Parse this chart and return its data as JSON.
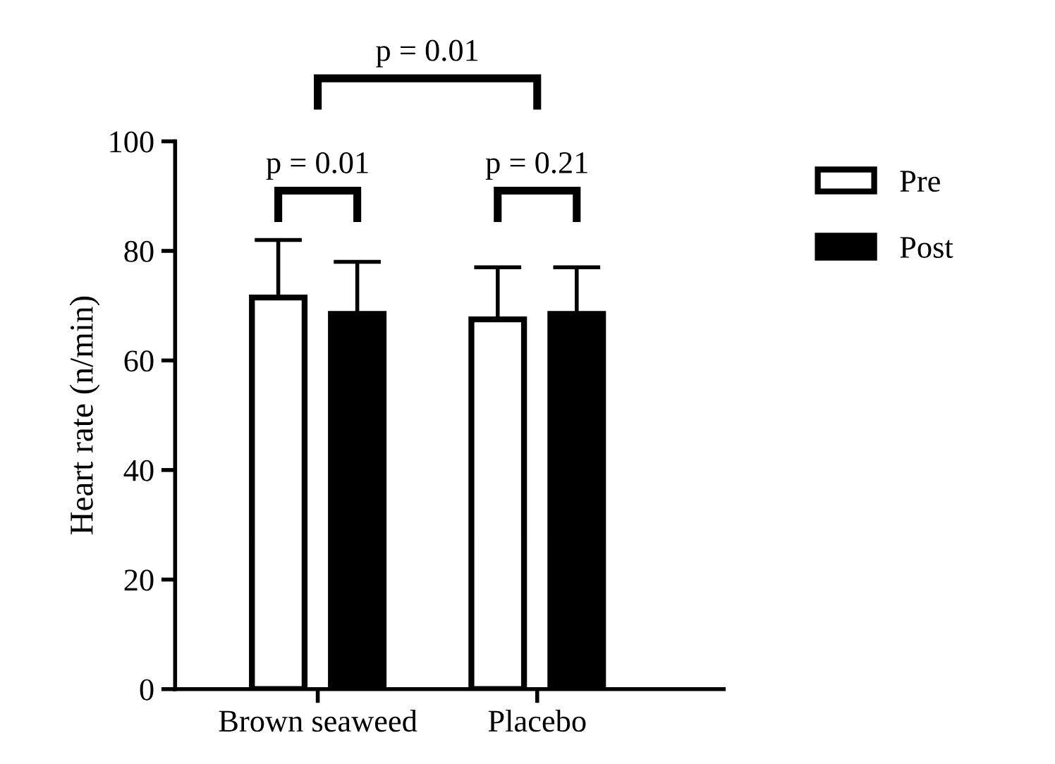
{
  "chart_data": {
    "type": "bar",
    "ylabel": "Heart rate (n/min)",
    "categories": [
      "Brown seaweed",
      "Placebo"
    ],
    "series": [
      {
        "name": "Pre",
        "color": "#ffffff",
        "values": [
          71.5,
          67.5
        ],
        "errors": [
          [
            71.5,
            82
          ],
          [
            67.5,
            77
          ]
        ]
      },
      {
        "name": "Post",
        "color": "#000000",
        "values": [
          68.5,
          68.5
        ],
        "errors": [
          [
            68.5,
            78
          ],
          [
            68.5,
            77
          ]
        ]
      }
    ],
    "ylim": [
      0,
      100
    ],
    "yticks": [
      0,
      20,
      40,
      60,
      80,
      100
    ],
    "grid": false,
    "legend": "right",
    "annotations": [
      "p = 0.01",
      "p = 0.21",
      "p = 0.01"
    ]
  }
}
